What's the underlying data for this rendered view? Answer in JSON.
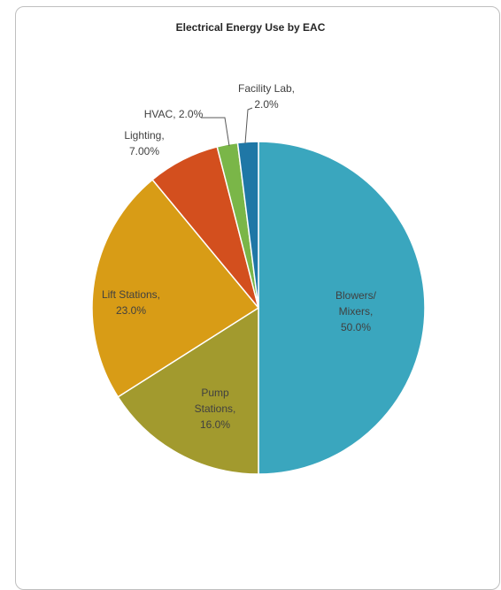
{
  "chart_data": {
    "type": "pie",
    "title": "Electrical Energy Use by EAC",
    "slices": [
      {
        "label_lines": [
          "Blowers/",
          "Mixers,",
          "50.0%"
        ],
        "value": 50.0,
        "color": "#3aa6be"
      },
      {
        "label_lines": [
          "Pump",
          "Stations,",
          "16.0%"
        ],
        "value": 16.0,
        "color": "#a29a2e"
      },
      {
        "label_lines": [
          "Lift Stations,",
          "23.0%"
        ],
        "value": 23.0,
        "color": "#d89c16"
      },
      {
        "label_lines": [
          "Lighting,",
          "7.00%"
        ],
        "value": 7.0,
        "color": "#d34f1e"
      },
      {
        "label_lines": [
          "HVAC, 2.0%"
        ],
        "value": 2.0,
        "color": "#7ab648"
      },
      {
        "label_lines": [
          "Facility Lab,",
          "2.0%"
        ],
        "value": 2.0,
        "color": "#1f77a6"
      }
    ],
    "start_angle_deg": 0,
    "direction": "clockwise",
    "legend": "none",
    "data_labels": "category-and-percent"
  }
}
